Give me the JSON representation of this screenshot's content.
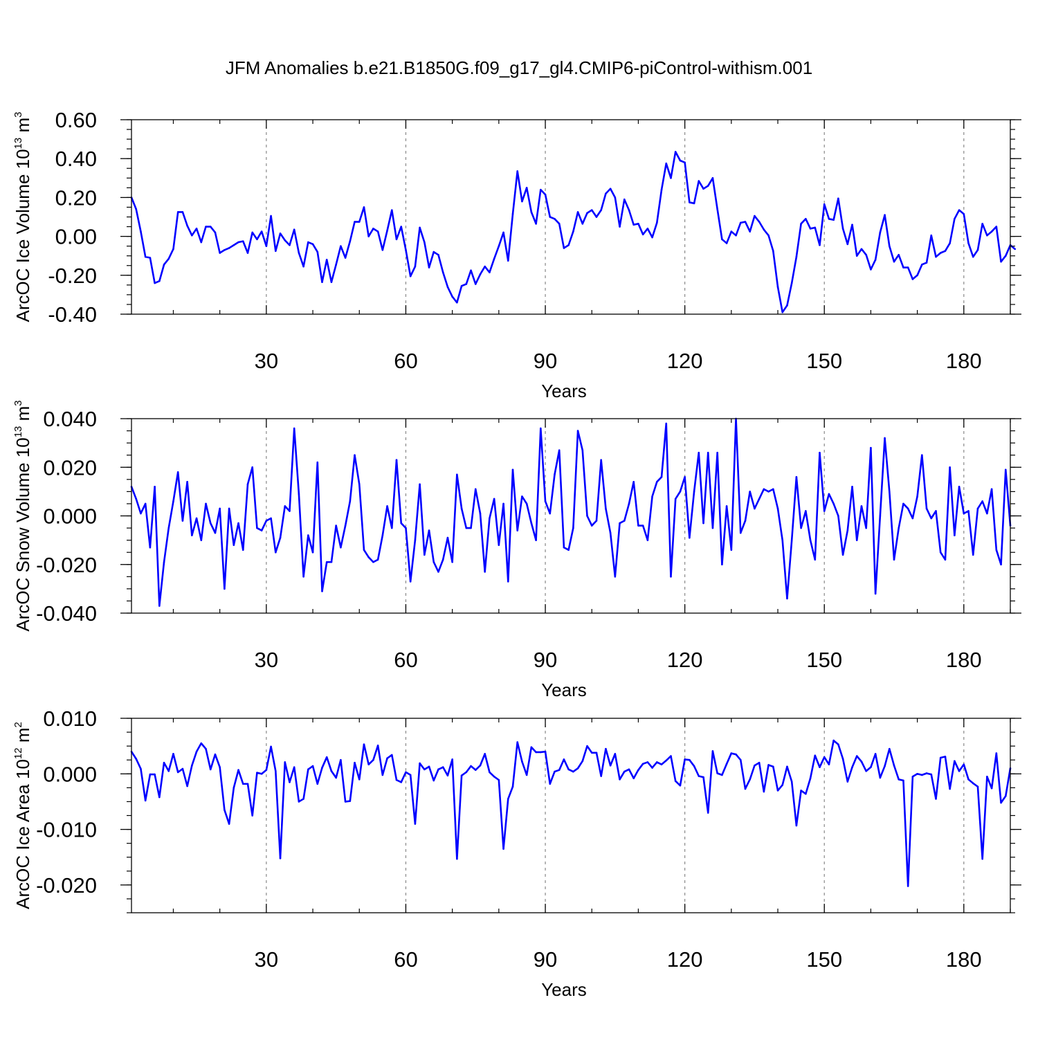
{
  "figure": {
    "title": "JFM Anomalies b.e21.B1850G.f09_g17_gl4.CMIP6-piControl-withism.001"
  },
  "style": {
    "line_color": "#0000ff",
    "axis_color": "#000000",
    "grid_color": "#888888"
  },
  "chart_data": [
    {
      "type": "line",
      "name": "ice-volume",
      "ylabel_main": "ArcOC Ice Volume 10",
      "ylabel_exp": "13",
      "ylabel_unit": " m",
      "ylabel_unit_exp": "3",
      "xlabel": "Years",
      "xlim": [
        1,
        190
      ],
      "ylim": [
        -0.4,
        0.6
      ],
      "xticks": [
        30,
        60,
        90,
        120,
        150,
        180
      ],
      "xtick_labels": [
        "30",
        "60",
        "90",
        "120",
        "150",
        "180"
      ],
      "yticks": [
        -0.4,
        -0.2,
        0.0,
        0.2,
        0.4,
        0.6
      ],
      "ytick_labels": [
        "-0.40",
        "-0.20",
        "0.00",
        "0.20",
        "0.40",
        "0.60"
      ],
      "yminor_step": 0.05,
      "x_start": 1,
      "values": [
        0.2,
        0.14,
        0.025,
        -0.105,
        -0.11,
        -0.24,
        -0.23,
        -0.145,
        -0.115,
        -0.065,
        0.125,
        0.125,
        0.055,
        0.005,
        0.04,
        -0.03,
        0.05,
        0.05,
        0.02,
        -0.085,
        -0.07,
        -0.06,
        -0.045,
        -0.03,
        -0.025,
        -0.085,
        0.02,
        -0.015,
        0.025,
        -0.05,
        0.105,
        -0.075,
        0.015,
        -0.02,
        -0.045,
        0.035,
        -0.085,
        -0.155,
        -0.03,
        -0.04,
        -0.08,
        -0.235,
        -0.12,
        -0.235,
        -0.145,
        -0.05,
        -0.11,
        -0.025,
        0.075,
        0.075,
        0.15,
        0.0,
        0.04,
        0.025,
        -0.07,
        0.03,
        0.135,
        -0.015,
        0.05,
        -0.07,
        -0.205,
        -0.155,
        0.045,
        -0.03,
        -0.16,
        -0.08,
        -0.095,
        -0.185,
        -0.26,
        -0.31,
        -0.34,
        -0.255,
        -0.245,
        -0.175,
        -0.245,
        -0.195,
        -0.155,
        -0.185,
        -0.115,
        -0.05,
        0.02,
        -0.125,
        0.115,
        0.335,
        0.18,
        0.25,
        0.125,
        0.065,
        0.24,
        0.215,
        0.1,
        0.09,
        0.065,
        -0.06,
        -0.045,
        0.025,
        0.125,
        0.065,
        0.12,
        0.135,
        0.1,
        0.135,
        0.22,
        0.245,
        0.2,
        0.05,
        0.19,
        0.135,
        0.06,
        0.065,
        0.01,
        0.04,
        -0.005,
        0.07,
        0.24,
        0.375,
        0.3,
        0.435,
        0.39,
        0.38,
        0.175,
        0.17,
        0.285,
        0.245,
        0.26,
        0.3,
        0.14,
        -0.015,
        -0.035,
        0.025,
        0.005,
        0.07,
        0.075,
        0.025,
        0.105,
        0.075,
        0.035,
        0.005,
        -0.075,
        -0.26,
        -0.39,
        -0.355,
        -0.24,
        -0.105,
        0.065,
        0.09,
        0.04,
        0.045,
        -0.045,
        0.165,
        0.09,
        0.085,
        0.195,
        0.04,
        -0.04,
        0.06,
        -0.1,
        -0.065,
        -0.095,
        -0.17,
        -0.12,
        0.02,
        0.11,
        -0.05,
        -0.13,
        -0.095,
        -0.16,
        -0.16,
        -0.22,
        -0.2,
        -0.145,
        -0.135,
        0.005,
        -0.105,
        -0.085,
        -0.075,
        -0.035,
        0.09,
        0.135,
        0.115,
        -0.035,
        -0.105,
        -0.07,
        0.065,
        0.005,
        0.025,
        0.05,
        -0.13,
        -0.1,
        -0.045,
        -0.065
      ]
    },
    {
      "type": "line",
      "name": "snow-volume",
      "ylabel_main": "ArcOC Snow Volume 10",
      "ylabel_exp": "13",
      "ylabel_unit": " m",
      "ylabel_unit_exp": "3",
      "xlabel": "Years",
      "xlim": [
        1,
        190
      ],
      "ylim": [
        -0.04,
        0.04
      ],
      "xticks": [
        30,
        60,
        90,
        120,
        150,
        180
      ],
      "xtick_labels": [
        "30",
        "60",
        "90",
        "120",
        "150",
        "180"
      ],
      "yticks": [
        -0.04,
        -0.02,
        0.0,
        0.02,
        0.04
      ],
      "ytick_labels": [
        "-0.040",
        "-0.020",
        "0.000",
        "0.020",
        "0.040"
      ],
      "yminor_step": 0.005,
      "x_start": 1,
      "values": [
        0.012,
        0.007,
        0.001,
        0.005,
        -0.013,
        0.012,
        -0.037,
        -0.019,
        -0.005,
        0.006,
        0.018,
        -0.002,
        0.014,
        -0.008,
        -0.001,
        -0.01,
        0.005,
        -0.003,
        -0.007,
        0.003,
        -0.03,
        0.003,
        -0.012,
        -0.003,
        -0.014,
        0.013,
        0.02,
        -0.005,
        -0.006,
        -0.002,
        -0.001,
        -0.015,
        -0.009,
        0.004,
        0.002,
        0.036,
        0.009,
        -0.025,
        -0.008,
        -0.015,
        0.022,
        -0.031,
        -0.019,
        -0.019,
        -0.004,
        -0.013,
        -0.004,
        0.006,
        0.025,
        0.013,
        -0.014,
        -0.017,
        -0.019,
        -0.018,
        -0.008,
        0.004,
        -0.005,
        0.023,
        -0.003,
        -0.005,
        -0.027,
        -0.01,
        0.013,
        -0.016,
        -0.006,
        -0.019,
        -0.023,
        -0.018,
        -0.009,
        -0.019,
        0.017,
        0.003,
        -0.005,
        -0.005,
        0.011,
        0.001,
        -0.023,
        -0.001,
        0.007,
        -0.012,
        0.005,
        -0.027,
        0.019,
        -0.006,
        0.008,
        0.005,
        -0.003,
        -0.01,
        0.036,
        0.006,
        0.001,
        0.017,
        0.027,
        -0.013,
        -0.014,
        -0.005,
        0.035,
        0.027,
        0.0,
        -0.004,
        -0.002,
        0.023,
        0.003,
        -0.007,
        -0.025,
        -0.003,
        -0.002,
        0.005,
        0.014,
        -0.004,
        -0.004,
        -0.01,
        0.008,
        0.014,
        0.016,
        0.038,
        -0.025,
        0.007,
        0.01,
        0.016,
        -0.009,
        0.01,
        0.026,
        -0.003,
        0.026,
        -0.005,
        0.026,
        -0.02,
        0.004,
        -0.014,
        0.04,
        -0.007,
        -0.002,
        0.01,
        0.003,
        0.007,
        0.011,
        0.01,
        0.011,
        0.003,
        -0.01,
        -0.034,
        -0.01,
        0.016,
        -0.005,
        0.002,
        -0.01,
        -0.018,
        0.026,
        0.002,
        0.009,
        0.005,
        0.0,
        -0.016,
        -0.006,
        0.012,
        -0.01,
        0.004,
        -0.005,
        0.028,
        -0.032,
        0.0,
        0.032,
        0.01,
        -0.018,
        -0.005,
        0.005,
        0.003,
        -0.001,
        0.008,
        0.025,
        0.003,
        -0.001,
        0.002,
        -0.015,
        -0.018,
        0.02,
        -0.008,
        0.012,
        0.001,
        0.002,
        -0.016,
        0.003,
        0.006,
        0.001,
        0.011,
        -0.014,
        -0.02,
        0.019,
        -0.004
      ]
    },
    {
      "type": "line",
      "name": "ice-area",
      "ylabel_main": "ArcOC Ice Area 10",
      "ylabel_exp": "12",
      "ylabel_unit": " m",
      "ylabel_unit_exp": "2",
      "xlabel": "Years",
      "xlim": [
        1,
        190
      ],
      "ylim": [
        -0.025,
        0.01
      ],
      "xticks": [
        30,
        60,
        90,
        120,
        150,
        180
      ],
      "xtick_labels": [
        "30",
        "60",
        "90",
        "120",
        "150",
        "180"
      ],
      "yticks": [
        -0.02,
        -0.01,
        0.0,
        0.01
      ],
      "ytick_labels": [
        "-0.020",
        "-0.010",
        "0.000",
        "0.010"
      ],
      "yminor_step": 0.0025,
      "x_start": 1,
      "values": [
        0.004,
        0.0027,
        0.0009,
        -0.0048,
        -0.0001,
        -0.0001,
        -0.0042,
        0.002,
        0.0005,
        0.0036,
        0.0003,
        0.0009,
        -0.0022,
        0.0015,
        0.004,
        0.0055,
        0.0045,
        0.0008,
        0.0035,
        0.0012,
        -0.0065,
        -0.009,
        -0.0025,
        0.0007,
        -0.0018,
        -0.0018,
        -0.0075,
        0.0002,
        0.0,
        0.0007,
        0.0049,
        0.0005,
        -0.0152,
        0.0021,
        -0.0015,
        0.0012,
        -0.005,
        -0.0045,
        0.0008,
        0.0014,
        -0.0018,
        0.0011,
        0.003,
        0.0005,
        -0.0007,
        0.0025,
        -0.005,
        -0.0049,
        0.002,
        -0.001,
        0.0053,
        0.0017,
        0.0025,
        0.0051,
        -0.0002,
        0.0028,
        0.0034,
        -0.0011,
        -0.0015,
        0.0003,
        -0.0002,
        -0.009,
        0.0019,
        0.0008,
        0.0013,
        -0.0012,
        0.0008,
        0.0012,
        -0.0003,
        0.0026,
        -0.0153,
        -0.0003,
        0.0003,
        0.0014,
        0.0007,
        0.0015,
        0.0036,
        0.0003,
        -0.0005,
        -0.0011,
        -0.0135,
        -0.0045,
        -0.0023,
        0.0057,
        0.0022,
        -0.0002,
        0.0048,
        0.0039,
        0.0039,
        0.004,
        -0.0018,
        0.0004,
        0.0007,
        0.0026,
        0.0008,
        0.0004,
        0.001,
        0.0023,
        0.005,
        0.0038,
        0.0038,
        -0.0004,
        0.0045,
        0.0015,
        0.0036,
        -0.001,
        0.0004,
        0.0008,
        -0.0008,
        0.0007,
        0.0018,
        0.0021,
        0.0011,
        0.0021,
        0.0017,
        0.0024,
        0.0032,
        -0.0013,
        -0.0021,
        0.0026,
        0.0025,
        0.0014,
        -0.0004,
        -0.0006,
        -0.007,
        0.0041,
        0.0001,
        -0.0002,
        0.0018,
        0.0037,
        0.0035,
        0.0025,
        -0.0027,
        -0.001,
        0.0015,
        0.002,
        -0.0032,
        0.0016,
        0.0013,
        -0.003,
        -0.002,
        0.0013,
        -0.0014,
        -0.0093,
        -0.003,
        -0.0036,
        -0.0008,
        0.0033,
        0.0012,
        0.003,
        0.0017,
        0.006,
        0.0053,
        0.0027,
        -0.0014,
        0.0012,
        0.0032,
        0.0022,
        0.0005,
        0.0012,
        0.0036,
        -0.0007,
        0.0014,
        0.0045,
        0.0015,
        -0.001,
        -0.0012,
        -0.0202,
        -0.0005,
        0.0,
        -0.0002,
        0.0001,
        -0.0001,
        -0.0045,
        0.0029,
        0.0031,
        -0.0027,
        0.0023,
        0.0005,
        0.0017,
        -0.001,
        -0.0017,
        -0.0023,
        -0.0153,
        -0.0005,
        -0.0026,
        0.0037,
        -0.0052,
        -0.004,
        0.001
      ]
    }
  ]
}
